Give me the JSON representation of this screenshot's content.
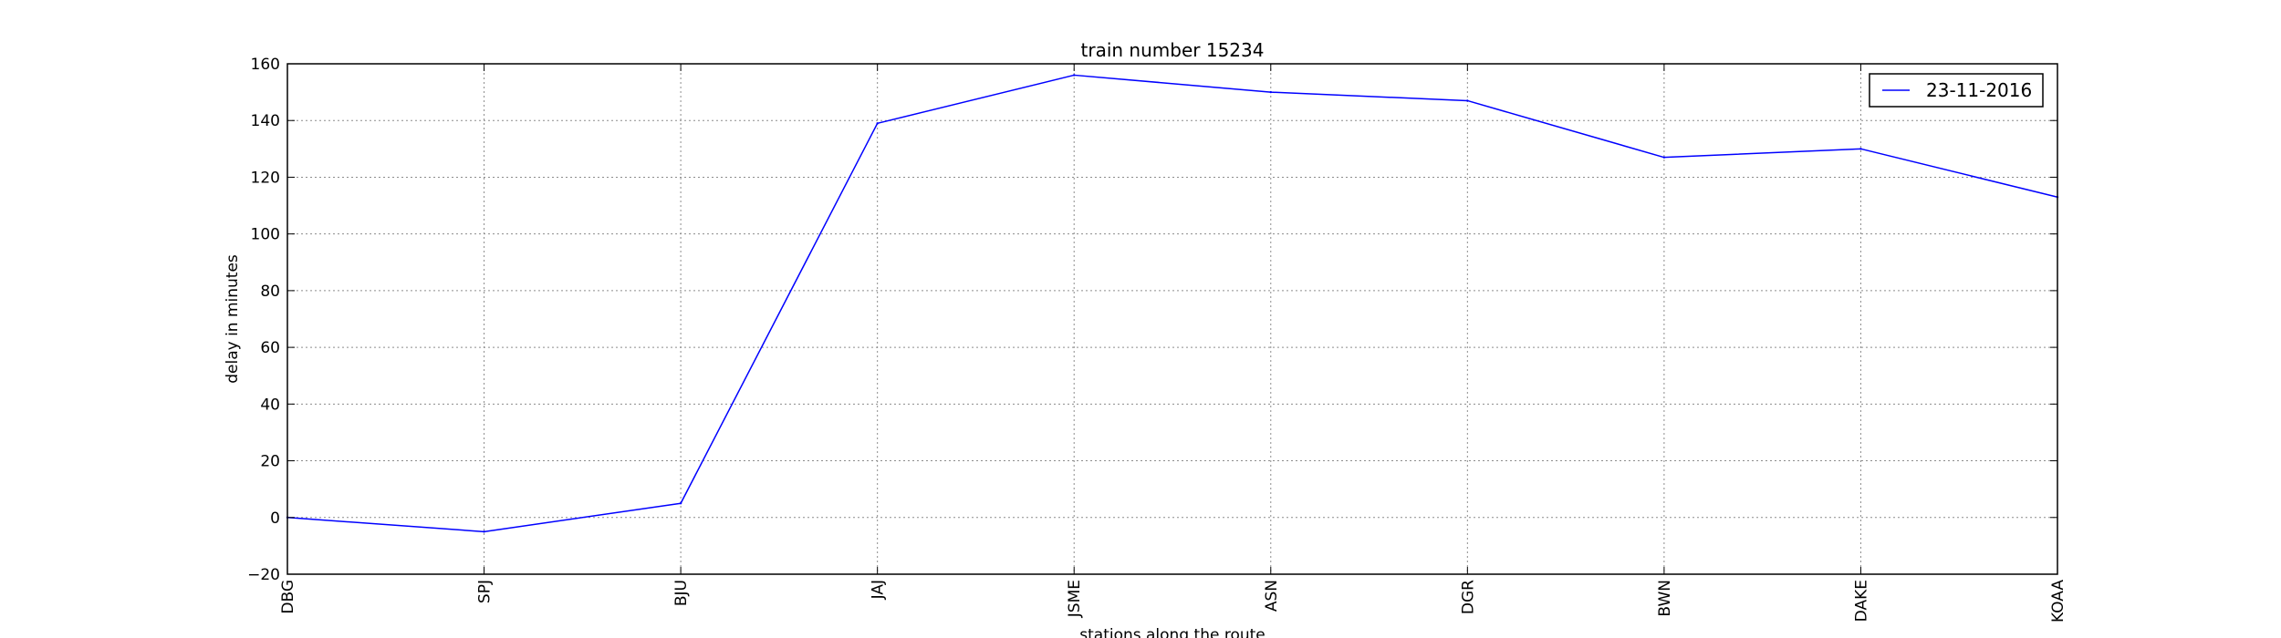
{
  "chart_data": {
    "type": "line",
    "title": "train number 15234",
    "xlabel": "stations along the route",
    "ylabel": "delay in minutes",
    "categories": [
      "DBG",
      "SPJ",
      "BJU",
      "JAJ",
      "JSME",
      "ASN",
      "DGR",
      "BWN",
      "DAKE",
      "KOAA"
    ],
    "series": [
      {
        "name": "23-11-2016",
        "values": [
          0,
          -5,
          5,
          139,
          156,
          150,
          147,
          127,
          130,
          113
        ],
        "color": "#0000ff"
      }
    ],
    "ylim": [
      -20,
      160
    ],
    "yticks": [
      -20,
      0,
      20,
      40,
      60,
      80,
      100,
      120,
      140,
      160
    ],
    "grid": true,
    "legend_position": "top-right"
  }
}
